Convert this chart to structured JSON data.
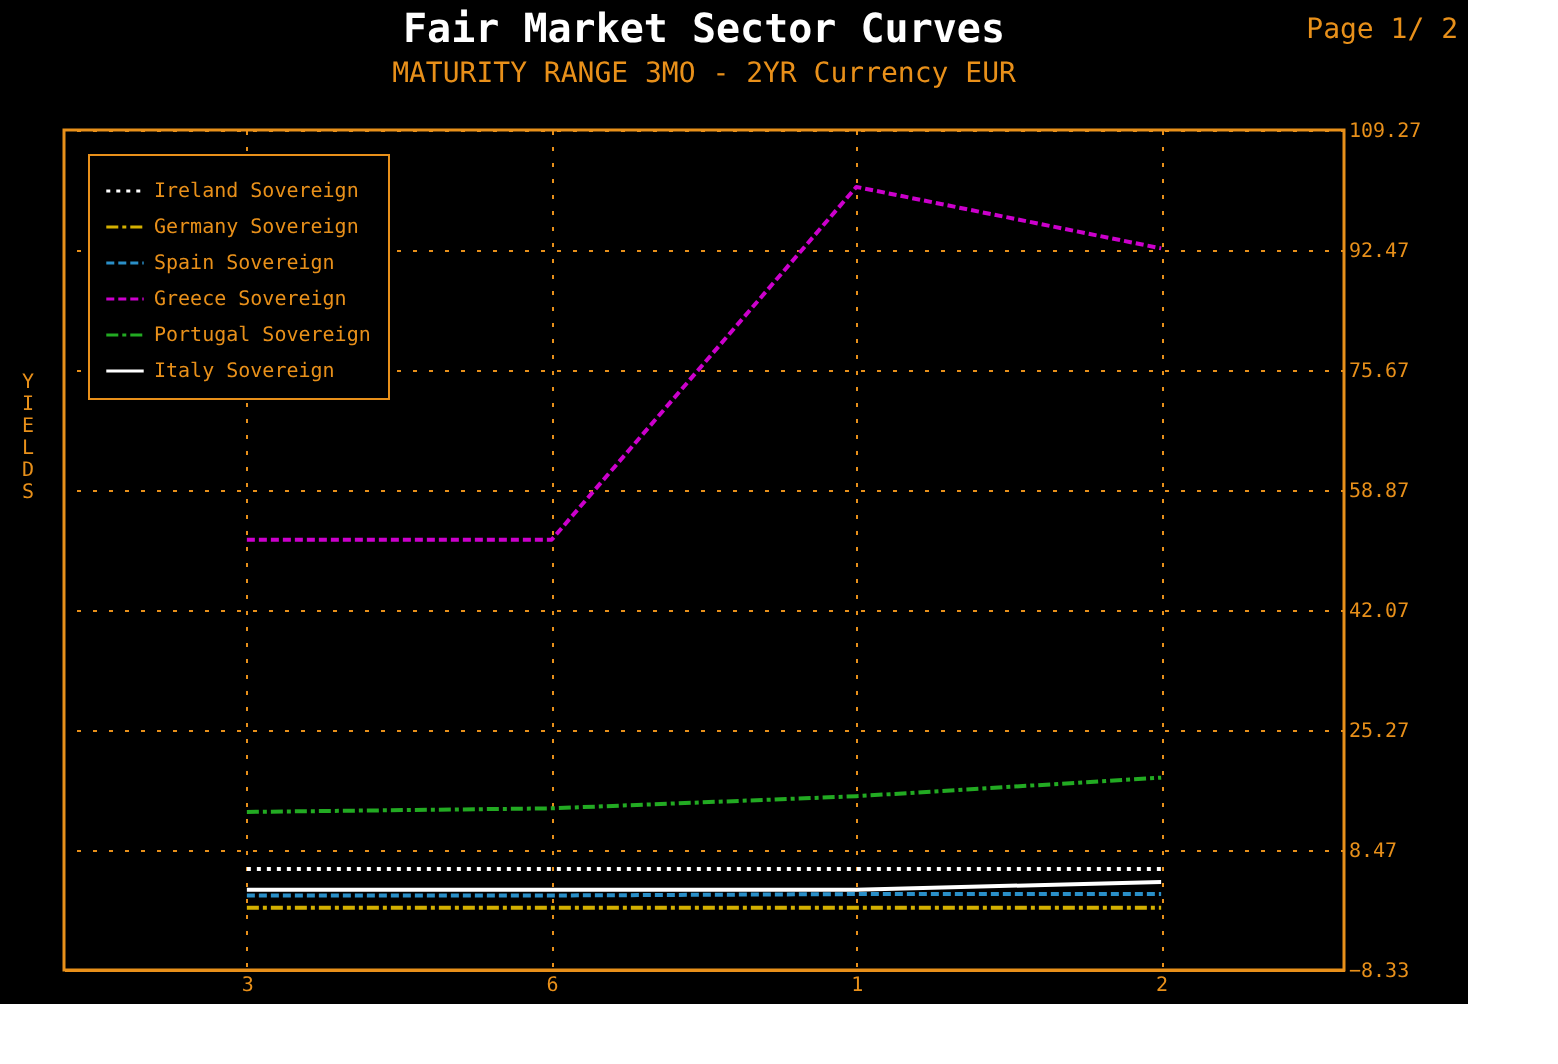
{
  "chart_data": {
    "type": "line",
    "title": "Fair Market Sector Curves",
    "subtitle": "MATURITY RANGE 3MO - 2YR   Currency EUR",
    "annotations": [
      "Page 1/ 2"
    ],
    "ylabel": "YIELDS",
    "categories": [
      "3",
      "6",
      "1",
      "2"
    ],
    "series": [
      {
        "name": "Ireland Sovereign",
        "color": "#ffffff",
        "line_style": "dotted",
        "values": [
          5.8,
          5.8,
          5.8,
          5.8
        ]
      },
      {
        "name": "Germany Sovereign",
        "color": "#d4b000",
        "line_style": "dashdot",
        "values": [
          0.4,
          0.4,
          0.4,
          0.4
        ]
      },
      {
        "name": "Spain Sovereign",
        "color": "#2a8fc8",
        "line_style": "dashed",
        "values": [
          2.1,
          2.1,
          2.3,
          2.3
        ]
      },
      {
        "name": "Greece Sovereign",
        "color": "#cc00cc",
        "line_style": "dashed",
        "values": [
          51.9,
          51.9,
          101.3,
          92.7
        ]
      },
      {
        "name": "Portugal Sovereign",
        "color": "#22aa22",
        "line_style": "dashdot",
        "values": [
          13.8,
          14.3,
          16.0,
          18.6
        ]
      },
      {
        "name": "Italy Sovereign",
        "color": "#ffffff",
        "line_style": "solid",
        "values": [
          2.9,
          2.9,
          2.9,
          4.0
        ]
      }
    ],
    "ylim": [
      -8.33,
      109.27
    ],
    "yticks": [
      -8.33,
      8.47,
      25.27,
      42.07,
      58.87,
      75.67,
      92.47,
      109.27
    ],
    "grid": true,
    "legend": "top left"
  }
}
